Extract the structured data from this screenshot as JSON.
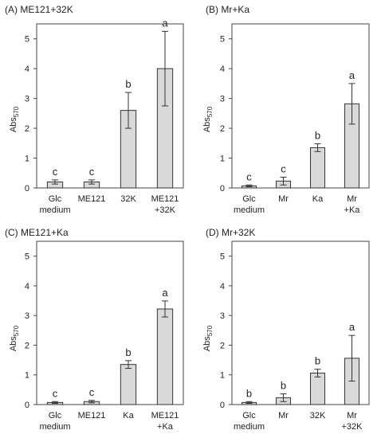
{
  "chart_data": [
    {
      "type": "bar",
      "title": "(A) ME121+32K",
      "ylabel": "Abs",
      "ylabel_sub": "570",
      "ylim": [
        0,
        5.5
      ],
      "yticks": [
        0,
        1,
        2,
        3,
        4,
        5
      ],
      "categories": [
        [
          "Glc",
          "medium"
        ],
        [
          "ME121"
        ],
        [
          "32K"
        ],
        [
          "ME121",
          "+32K"
        ]
      ],
      "values": [
        0.2,
        0.2,
        2.6,
        4.0
      ],
      "errors": [
        0.07,
        0.07,
        0.6,
        1.25
      ],
      "sig": [
        "c",
        "c",
        "b",
        "a"
      ]
    },
    {
      "type": "bar",
      "title": "(B) Mr+Ka",
      "ylabel": "Abs",
      "ylabel_sub": "570",
      "ylim": [
        0,
        5.5
      ],
      "yticks": [
        0,
        1,
        2,
        3,
        4,
        5
      ],
      "categories": [
        [
          "Glc",
          "medium"
        ],
        [
          "Mr"
        ],
        [
          "Ka"
        ],
        [
          "Mr",
          "+Ka"
        ]
      ],
      "values": [
        0.07,
        0.23,
        1.35,
        2.82
      ],
      "errors": [
        0.03,
        0.13,
        0.13,
        0.68
      ],
      "sig": [
        "c",
        "c",
        "b",
        "a"
      ]
    },
    {
      "type": "bar",
      "title": "(C) ME121+Ka",
      "ylabel": "Abs",
      "ylabel_sub": "570",
      "ylim": [
        0,
        5.5
      ],
      "yticks": [
        0,
        1,
        2,
        3,
        4,
        5
      ],
      "categories": [
        [
          "Glc",
          "medium"
        ],
        [
          "ME121"
        ],
        [
          "Ka"
        ],
        [
          "ME121",
          "+Ka"
        ]
      ],
      "values": [
        0.07,
        0.1,
        1.35,
        3.22
      ],
      "errors": [
        0.03,
        0.04,
        0.13,
        0.27
      ],
      "sig": [
        "c",
        "c",
        "b",
        "a"
      ]
    },
    {
      "type": "bar",
      "title": "(D) Mr+32K",
      "ylabel": "Abs",
      "ylabel_sub": "570",
      "ylim": [
        0,
        5.5
      ],
      "yticks": [
        0,
        1,
        2,
        3,
        4,
        5
      ],
      "categories": [
        [
          "Glc",
          "medium"
        ],
        [
          "Mr"
        ],
        [
          "32K"
        ],
        [
          "Mr",
          "+32K"
        ]
      ],
      "values": [
        0.07,
        0.23,
        1.06,
        1.56
      ],
      "errors": [
        0.03,
        0.13,
        0.13,
        0.77
      ],
      "sig": [
        "b",
        "b",
        "b",
        "a"
      ]
    }
  ]
}
